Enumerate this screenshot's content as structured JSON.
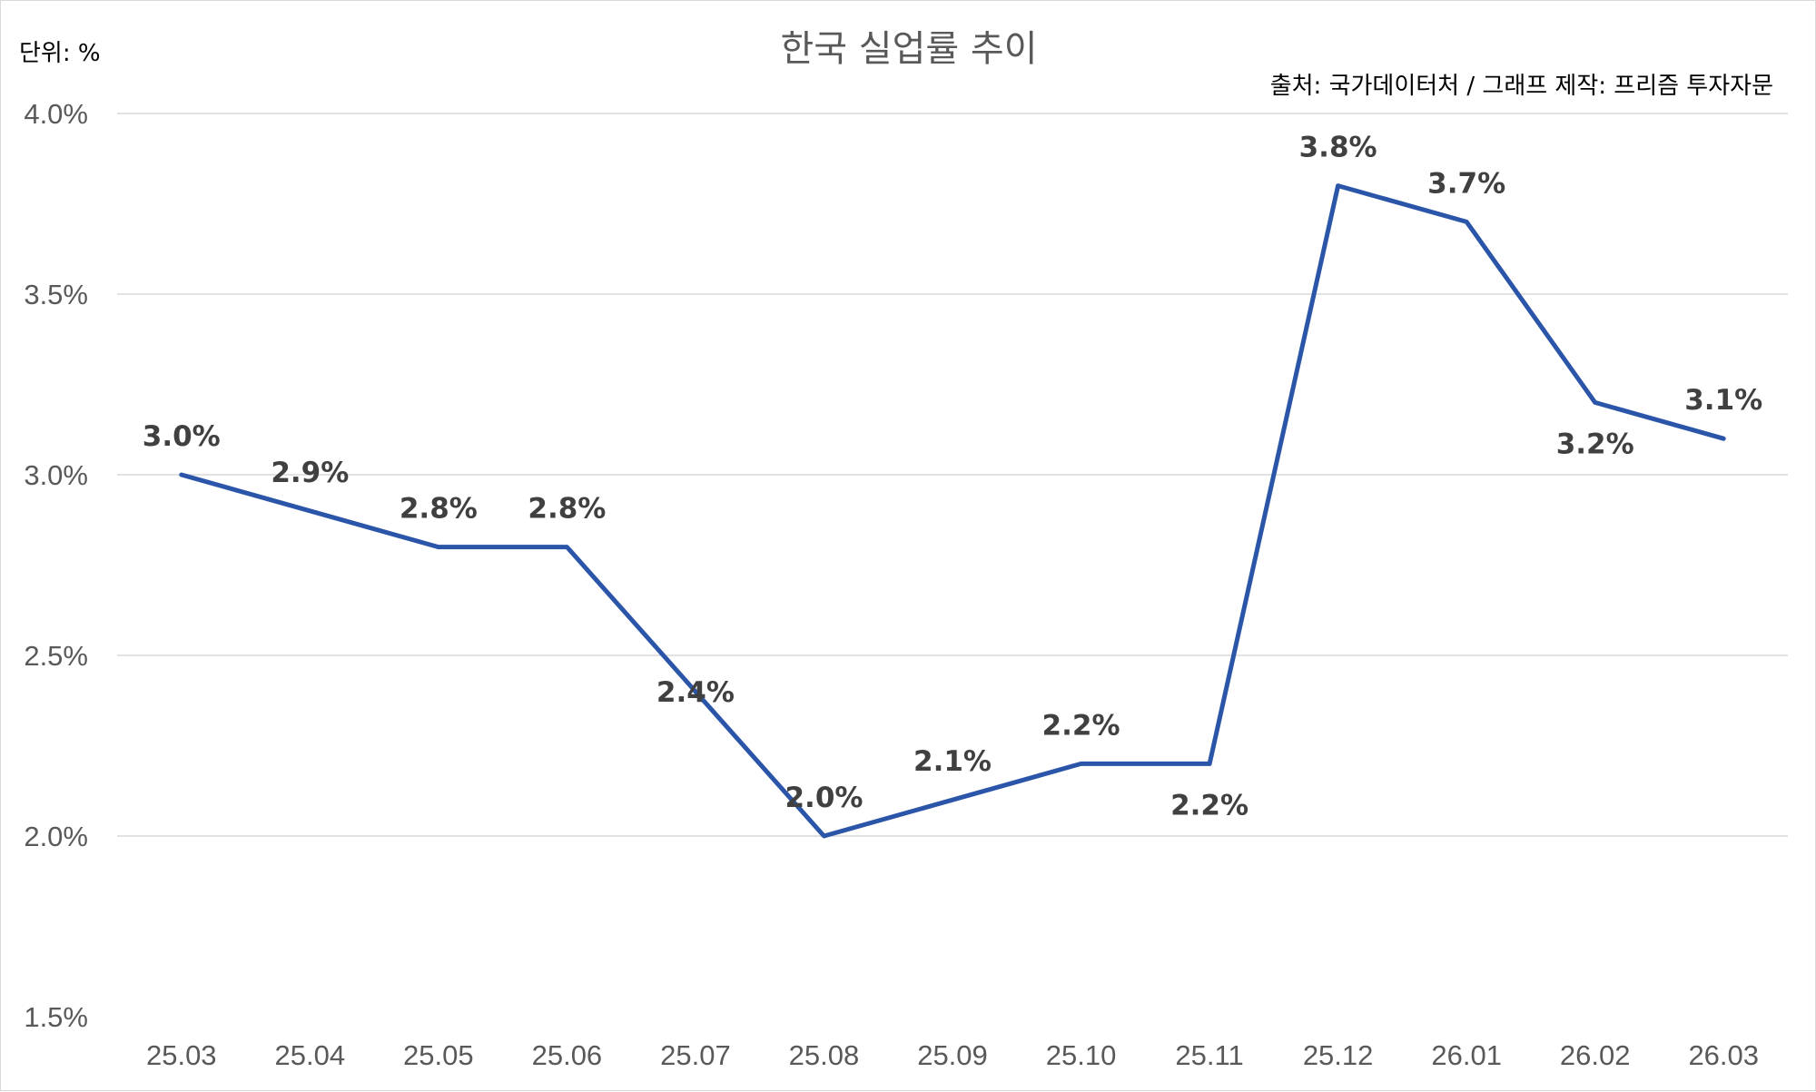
{
  "chart_data": {
    "type": "line",
    "title": "한국 실업률 추이",
    "unit_label": "단위: %",
    "source_label": "출처: 국가데이터처 / 그래프 제작: 프리즘 투자자문",
    "categories": [
      "25.03",
      "25.04",
      "25.05",
      "25.06",
      "25.07",
      "25.08",
      "25.09",
      "25.10",
      "25.11",
      "25.12",
      "26.01",
      "26.02",
      "26.03"
    ],
    "series": [
      {
        "values": [
          3.0,
          2.9,
          2.8,
          2.8,
          2.4,
          2.0,
          2.1,
          2.2,
          2.2,
          3.8,
          3.7,
          3.2,
          3.1
        ],
        "labels": [
          "3.0%",
          "2.9%",
          "2.8%",
          "2.8%",
          "2.4%",
          "2.0%",
          "2.1%",
          "2.2%",
          "2.2%",
          "3.8%",
          "3.7%",
          "3.2%",
          "3.1%"
        ],
        "label_positions": [
          "above",
          "above",
          "above",
          "above",
          "center",
          "above",
          "above",
          "above",
          "below",
          "above",
          "above",
          "below",
          "above"
        ],
        "color": "#2b55a8"
      }
    ],
    "ylim": [
      1.5,
      4.0
    ],
    "yticks": [
      1.5,
      2.0,
      2.5,
      3.0,
      3.5,
      4.0
    ],
    "ytick_labels": [
      "1.5%",
      "2.0%",
      "2.5%",
      "3.0%",
      "3.5%",
      "4.0%"
    ],
    "grid": true,
    "legend": "none"
  }
}
